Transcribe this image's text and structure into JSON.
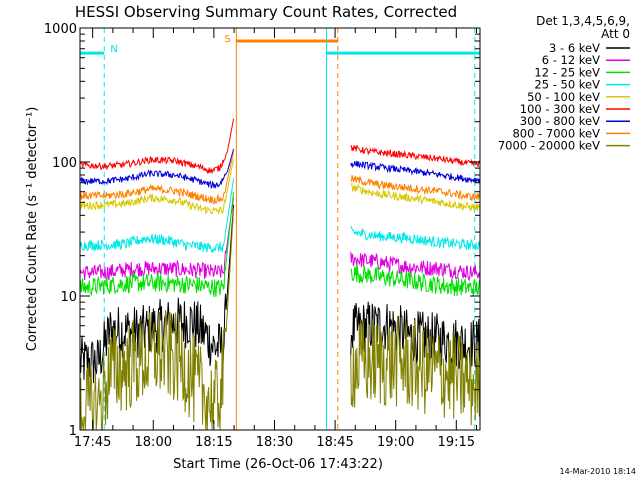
{
  "chart_data": {
    "type": "line",
    "title": "HESSI Observing Summary Count Rates, Corrected",
    "xlabel": "Start Time (26-Oct-06 17:43:22)",
    "ylabel": "Corrected Count Rate (s⁻¹ detector⁻¹)",
    "yscale": "log",
    "ylim": [
      1,
      1000
    ],
    "xlim_minutes": [
      -1.5,
      97.5
    ],
    "x_ticks": [
      "17:45",
      "18:00",
      "18:15",
      "18:30",
      "18:45",
      "19:00",
      "19:15"
    ],
    "y_ticks": [
      "1",
      "10",
      "100",
      "1000"
    ],
    "legend_header": [
      "Det 1,3,4,5,6,9,",
      "Att 0"
    ],
    "legend_position": "right",
    "date_stamp": "14-Mar-2010 18:14",
    "segments_minutes": [
      [
        -1.5,
        36.5
      ],
      [
        65.5,
        97.5
      ]
    ],
    "series": [
      {
        "name": "3 - 6 keV",
        "color": "#000000",
        "noise": 0.2,
        "points_a": [
          [
            -1.5,
            3.2
          ],
          [
            3,
            3.2
          ],
          [
            6,
            5.5
          ],
          [
            14,
            5.4
          ],
          [
            18,
            6.0
          ],
          [
            26,
            6.5
          ],
          [
            30,
            5.0
          ],
          [
            31.5,
            4.2
          ],
          [
            34,
            4.1
          ],
          [
            36.5,
            48
          ]
        ],
        "points_b": [
          [
            65.5,
            5.5
          ],
          [
            70,
            6.0
          ],
          [
            75,
            6.0
          ],
          [
            80,
            5.0
          ],
          [
            86,
            4.8
          ],
          [
            92,
            4.5
          ],
          [
            95,
            4.4
          ]
        ]
      },
      {
        "name": "6 - 12 keV",
        "color": "#e000e0",
        "noise": 0.06,
        "points_a": [
          [
            -1.5,
            15
          ],
          [
            5,
            15
          ],
          [
            12,
            16
          ],
          [
            20,
            16
          ],
          [
            28,
            15.5
          ],
          [
            32,
            15
          ],
          [
            34,
            15
          ],
          [
            36.5,
            55
          ]
        ],
        "points_b": [
          [
            65.5,
            19
          ],
          [
            72,
            18
          ],
          [
            80,
            16.5
          ],
          [
            88,
            16
          ],
          [
            95,
            15
          ]
        ]
      },
      {
        "name": "12 - 25 keV",
        "color": "#00e000",
        "noise": 0.07,
        "points_a": [
          [
            -1.5,
            11.5
          ],
          [
            5,
            12
          ],
          [
            12,
            12.5
          ],
          [
            20,
            12.5
          ],
          [
            28,
            12
          ],
          [
            32,
            11.5
          ],
          [
            34,
            11.5
          ],
          [
            36.5,
            60
          ]
        ],
        "points_b": [
          [
            65.5,
            15
          ],
          [
            72,
            14
          ],
          [
            80,
            13
          ],
          [
            88,
            12
          ],
          [
            95,
            11.5
          ]
        ]
      },
      {
        "name": "25 - 50 keV",
        "color": "#00e8e8",
        "noise": 0.04,
        "points_a": [
          [
            -1.5,
            24
          ],
          [
            5,
            24
          ],
          [
            10,
            24.5
          ],
          [
            15,
            27
          ],
          [
            20,
            26
          ],
          [
            25,
            24
          ],
          [
            30,
            23
          ],
          [
            34,
            23
          ],
          [
            36.5,
            75
          ]
        ],
        "points_b": [
          [
            65.5,
            30
          ],
          [
            72,
            28
          ],
          [
            80,
            27
          ],
          [
            88,
            25
          ],
          [
            95,
            24
          ]
        ]
      },
      {
        "name": "50 - 100 keV",
        "color": "#d8c800",
        "noise": 0.03,
        "points_a": [
          [
            -1.5,
            47
          ],
          [
            5,
            48
          ],
          [
            10,
            49
          ],
          [
            16,
            54
          ],
          [
            22,
            52
          ],
          [
            28,
            45
          ],
          [
            32,
            43
          ],
          [
            34,
            44
          ],
          [
            36.5,
            105
          ]
        ],
        "points_b": [
          [
            65.5,
            65
          ],
          [
            72,
            58
          ],
          [
            80,
            54
          ],
          [
            88,
            50
          ],
          [
            95,
            46
          ]
        ]
      },
      {
        "name": "100 - 300 keV",
        "color": "#ff0000",
        "noise": 0.025,
        "points_a": [
          [
            -1.5,
            95
          ],
          [
            5,
            93
          ],
          [
            10,
            96
          ],
          [
            16,
            104
          ],
          [
            22,
            102
          ],
          [
            28,
            92
          ],
          [
            31,
            86
          ],
          [
            33,
            90
          ],
          [
            35,
            120
          ],
          [
            36.5,
            210
          ]
        ],
        "points_b": [
          [
            65.5,
            128
          ],
          [
            70,
            120
          ],
          [
            76,
            115
          ],
          [
            82,
            110
          ],
          [
            88,
            105
          ],
          [
            95,
            97
          ]
        ]
      },
      {
        "name": "300 - 800 keV",
        "color": "#0000d8",
        "noise": 0.025,
        "points_a": [
          [
            -1.5,
            72
          ],
          [
            5,
            72
          ],
          [
            10,
            75
          ],
          [
            16,
            82
          ],
          [
            22,
            80
          ],
          [
            28,
            72
          ],
          [
            31,
            67
          ],
          [
            33,
            68
          ],
          [
            35,
            85
          ],
          [
            36.5,
            125
          ]
        ],
        "points_b": [
          [
            65.5,
            98
          ],
          [
            72,
            92
          ],
          [
            80,
            86
          ],
          [
            88,
            80
          ],
          [
            95,
            74
          ]
        ]
      },
      {
        "name": "800 - 7000 keV",
        "color": "#ff8000",
        "noise": 0.03,
        "points_a": [
          [
            -1.5,
            56
          ],
          [
            5,
            56
          ],
          [
            10,
            58
          ],
          [
            16,
            63
          ],
          [
            22,
            61
          ],
          [
            28,
            55
          ],
          [
            32,
            52
          ],
          [
            34,
            54
          ],
          [
            36.5,
            118
          ]
        ],
        "points_b": [
          [
            65.5,
            75
          ],
          [
            72,
            68
          ],
          [
            80,
            64
          ],
          [
            88,
            60
          ],
          [
            95,
            55
          ]
        ]
      },
      {
        "name": "7000 - 20000 keV",
        "color": "#808000",
        "noise": 0.35,
        "points_a": [
          [
            -1.5,
            1.4
          ],
          [
            3,
            1.5
          ],
          [
            6,
            2.7
          ],
          [
            14,
            3.3
          ],
          [
            18,
            3.8
          ],
          [
            24,
            3.2
          ],
          [
            28,
            2.0
          ],
          [
            32,
            1.5
          ],
          [
            34,
            2.5
          ],
          [
            36.5,
            45
          ]
        ],
        "points_b": [
          [
            65.5,
            3.0
          ],
          [
            70,
            3.2
          ],
          [
            78,
            3.2
          ],
          [
            84,
            2.8
          ],
          [
            90,
            2.6
          ],
          [
            95,
            2.2
          ]
        ]
      }
    ],
    "annotations": {
      "night_label": "N",
      "saa_label": "S",
      "night_intervals": [
        [
          -1.5,
          4.5
        ],
        [
          59.5,
          97.5
        ]
      ],
      "saa_intervals": [
        [
          37.2,
          62.3
        ]
      ],
      "night_level": 650,
      "saa_level": 800,
      "night_lines_dashed": [
        4.5,
        96.2
      ],
      "night_lines_solid": [
        59.5
      ],
      "saa_lines_solid": [
        37.2
      ],
      "saa_lines_dashed": [
        62.3
      ]
    }
  }
}
